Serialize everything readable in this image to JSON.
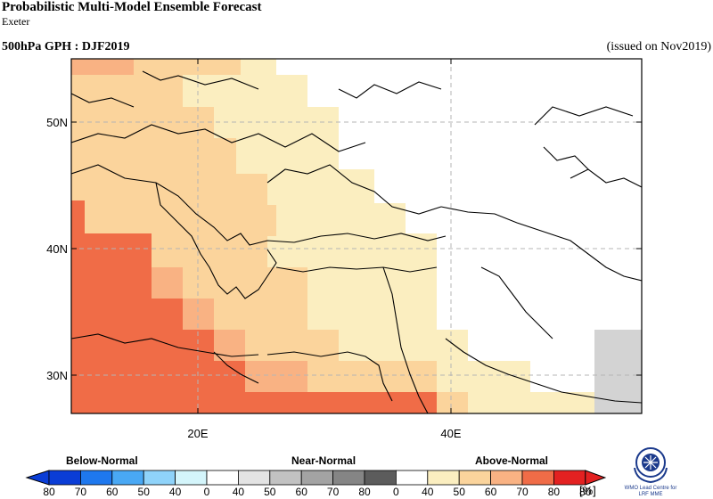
{
  "title": "Probabilistic Multi-Model Ensemble Forecast",
  "subtitle": "Exeter",
  "variable": "500hPa GPH : DJF2019",
  "issued": "(issued on Nov2019)",
  "map": {
    "lat_labels": [
      "50N",
      "40N",
      "30N"
    ],
    "lon_labels": [
      "20E",
      "40E"
    ]
  },
  "legend": {
    "categories": [
      "Below-Normal",
      "Near-Normal",
      "Above-Normal"
    ],
    "unit": "[%]",
    "bins": [
      {
        "label": "80",
        "color": "#0a3dd6"
      },
      {
        "label": "70",
        "color": "#1e78ee"
      },
      {
        "label": "60",
        "color": "#49a8f4"
      },
      {
        "label": "50",
        "color": "#8fd3fa"
      },
      {
        "label": "40",
        "color": "#d4f5fb"
      },
      {
        "label": "0",
        "color": "#ffffff"
      },
      {
        "label": "40",
        "color": "#e3e3e3"
      },
      {
        "label": "50",
        "color": "#c2c2c2"
      },
      {
        "label": "60",
        "color": "#a3a3a3"
      },
      {
        "label": "70",
        "color": "#858585"
      },
      {
        "label": "80",
        "color": "#5c5c5c"
      },
      {
        "label": "0",
        "color": "#ffffff"
      },
      {
        "label": "40",
        "color": "#fbeec0"
      },
      {
        "label": "50",
        "color": "#fbd49c"
      },
      {
        "label": "60",
        "color": "#f9b283"
      },
      {
        "label": "70",
        "color": "#f06c47"
      },
      {
        "label": "80",
        "color": "#e32121"
      }
    ],
    "end_label": "80"
  },
  "logo_text": [
    "WMO Lead Centre for",
    "LRF MME"
  ],
  "colors": {
    "above_40": "#fbeec0",
    "above_50": "#fbd49c",
    "above_60": "#f9b283",
    "above_70": "#f06c47",
    "above_80": "#e32121",
    "near_40": "#d3d3d3"
  }
}
